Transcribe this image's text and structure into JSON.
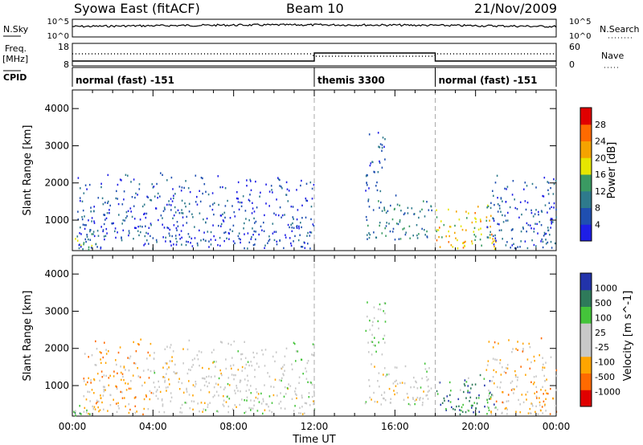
{
  "header": {
    "station": "Syowa East (fitACF)",
    "beam": "Beam 10",
    "date": "21/Nov/2009"
  },
  "side_labels": {
    "nsky": "N.Sky",
    "nsearch": "N.Search",
    "freq_line1": "Freq.",
    "freq_line2": "[MHz]",
    "nave": "Nave",
    "cpid": "CPID"
  },
  "noise_axis": {
    "top": "10^5",
    "bottom": "10^0",
    "right_top": "10^5",
    "right_bottom": "10^0"
  },
  "freq_axis": {
    "left_ticks": [
      "18",
      "8"
    ],
    "right_ticks": [
      "60",
      "0"
    ]
  },
  "cpid_segments": [
    {
      "label": "normal (fast) -151",
      "start_h": 0,
      "end_h": 12
    },
    {
      "label": "themis 3300",
      "start_h": 12,
      "end_h": 18
    },
    {
      "label": "normal (fast) -151",
      "start_h": 18,
      "end_h": 24
    }
  ],
  "colors": {
    "power_scale": [
      "#1e1ee6",
      "#1f4fb0",
      "#2e7a8c",
      "#3a9a62",
      "#e6e600",
      "#f5a300",
      "#ff6a00",
      "#e00000"
    ],
    "velocity_scale": [
      "#e00000",
      "#ff6a00",
      "#ffa500",
      "#c8c8c8",
      "#c8c8c8",
      "#44c43a",
      "#2e7a5a",
      "#2233aa"
    ]
  },
  "chart_data": [
    {
      "type": "heatmap",
      "name": "power",
      "xlabel": "Time UT",
      "ylabel": "Slant Range [km]",
      "xlim": [
        0,
        24
      ],
      "ylim": [
        180,
        4500
      ],
      "x_ticks": [
        "00:00",
        "04:00",
        "08:00",
        "12:00",
        "16:00",
        "20:00",
        "00:00"
      ],
      "y_ticks": [
        "1000",
        "2000",
        "3000",
        "4000"
      ],
      "colorbar": {
        "label": "Power [dB]",
        "ticks": [
          "4",
          "8",
          "12",
          "16",
          "20",
          "24",
          "28"
        ],
        "range": [
          0,
          30
        ]
      },
      "mode_boundaries_h": [
        12,
        18
      ],
      "regions": [
        {
          "t0": 0.0,
          "t1": 1.2,
          "r0": 200,
          "r1": 700,
          "value": 14
        },
        {
          "t0": 0.2,
          "t1": 4.0,
          "r0": 250,
          "r1": 2300,
          "value": 5
        },
        {
          "t0": 4.0,
          "t1": 8.5,
          "r0": 300,
          "r1": 2300,
          "value": 5
        },
        {
          "t0": 8.5,
          "t1": 12.0,
          "r0": 250,
          "r1": 2200,
          "value": 4
        },
        {
          "t0": 14.5,
          "t1": 15.5,
          "r0": 1800,
          "r1": 3400,
          "value": 6
        },
        {
          "t0": 14.5,
          "t1": 17.8,
          "r0": 500,
          "r1": 1700,
          "value": 9
        },
        {
          "t0": 18.0,
          "t1": 21.0,
          "r0": 250,
          "r1": 1500,
          "value": 18
        },
        {
          "t0": 20.5,
          "t1": 24.0,
          "r0": 250,
          "r1": 2300,
          "value": 6
        }
      ]
    },
    {
      "type": "heatmap",
      "name": "velocity",
      "xlabel": "Time UT",
      "ylabel": "Slant Range [km]",
      "xlim": [
        0,
        24
      ],
      "ylim": [
        180,
        4500
      ],
      "x_ticks": [
        "00:00",
        "04:00",
        "08:00",
        "12:00",
        "16:00",
        "20:00",
        "00:00"
      ],
      "y_ticks": [
        "1000",
        "2000",
        "3000",
        "4000"
      ],
      "colorbar": {
        "label": "Velocity [m s^-1]",
        "ticks": [
          "-1000",
          "-500",
          "-100",
          "-25",
          "25",
          "100",
          "500",
          "1000"
        ],
        "range": [
          -1200,
          1200
        ]
      },
      "mode_boundaries_h": [
        12,
        18
      ],
      "regions": [
        {
          "t0": 0.0,
          "t1": 1.0,
          "r0": 200,
          "r1": 700,
          "value": 300
        },
        {
          "t0": 0.5,
          "t1": 4.0,
          "r0": 250,
          "r1": 2300,
          "value": -400
        },
        {
          "t0": 4.0,
          "t1": 8.5,
          "r0": 300,
          "r1": 2300,
          "value": -80
        },
        {
          "t0": 8.5,
          "t1": 12.0,
          "r0": 250,
          "r1": 2200,
          "value": 60
        },
        {
          "t0": 14.5,
          "t1": 15.5,
          "r0": 1800,
          "r1": 3400,
          "value": 120
        },
        {
          "t0": 14.5,
          "t1": 17.8,
          "r0": 500,
          "r1": 1700,
          "value": 0
        },
        {
          "t0": 18.0,
          "t1": 21.0,
          "r0": 250,
          "r1": 1500,
          "value": 700
        },
        {
          "t0": 20.5,
          "t1": 24.0,
          "r0": 250,
          "r1": 2300,
          "value": -300
        }
      ]
    }
  ]
}
